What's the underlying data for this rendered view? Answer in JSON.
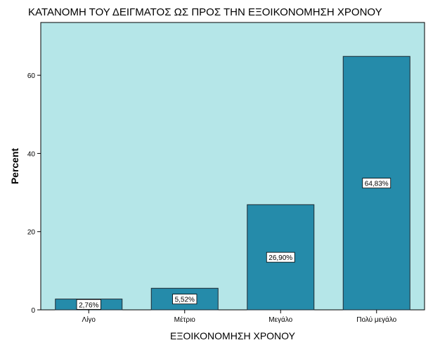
{
  "chart_data": {
    "type": "bar",
    "title": "ΚΑΤΑΝΟΜΗ ΤΟΥ ΔΕΙΓΜΑΤΟΣ ΩΣ ΠΡΟΣ ΤΗΝ ΕΞΟΙΚΟΝΟΜΗΣΗ ΧΡΟΝΟΥ",
    "xlabel": "ΕΞΟΙΚΟΝΟΜΗΣΗ ΧΡΟΝΟΥ",
    "ylabel": "Percent",
    "categories": [
      "Λίγο",
      "Μέτριο",
      "Μεγάλο",
      "Πολύ μεγάλο"
    ],
    "values": [
      2.76,
      5.52,
      26.9,
      64.83
    ],
    "data_labels": [
      "2,76%",
      "5,52%",
      "26,90%",
      "64,83%"
    ],
    "yticks": [
      0,
      20,
      40,
      60
    ],
    "ylim": [
      0,
      73.5
    ],
    "grid": false,
    "colors": {
      "plot_background": "#b5e6e8",
      "bar_fill": "#258baa",
      "bar_stroke": "#1e2a33",
      "label_box": "#ffffff"
    }
  }
}
